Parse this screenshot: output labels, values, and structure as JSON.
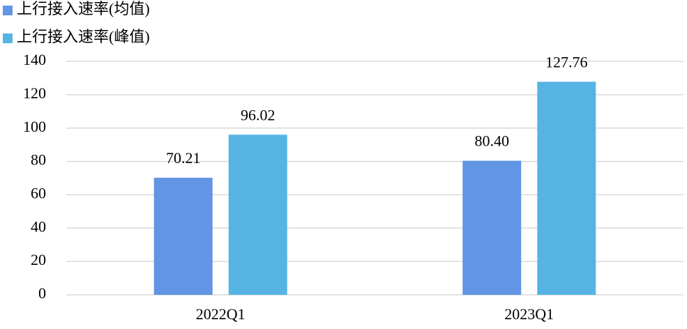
{
  "chart_data": {
    "type": "bar",
    "categories": [
      "2022Q1",
      "2023Q1"
    ],
    "series": [
      {
        "name": "上行接入速率(均值)",
        "color": "#6295e4",
        "values": [
          70.21,
          80.4
        ],
        "value_labels": [
          "70.21",
          "80.40"
        ]
      },
      {
        "name": "上行接入速率(峰值)",
        "color": "#56b4e4",
        "values": [
          96.02,
          127.76
        ],
        "value_labels": [
          "96.02",
          "127.76"
        ]
      }
    ],
    "ylim": [
      0,
      140
    ],
    "yticks": [
      0,
      20,
      40,
      60,
      80,
      100,
      120,
      140
    ],
    "grid": true,
    "legend": "top-left"
  }
}
